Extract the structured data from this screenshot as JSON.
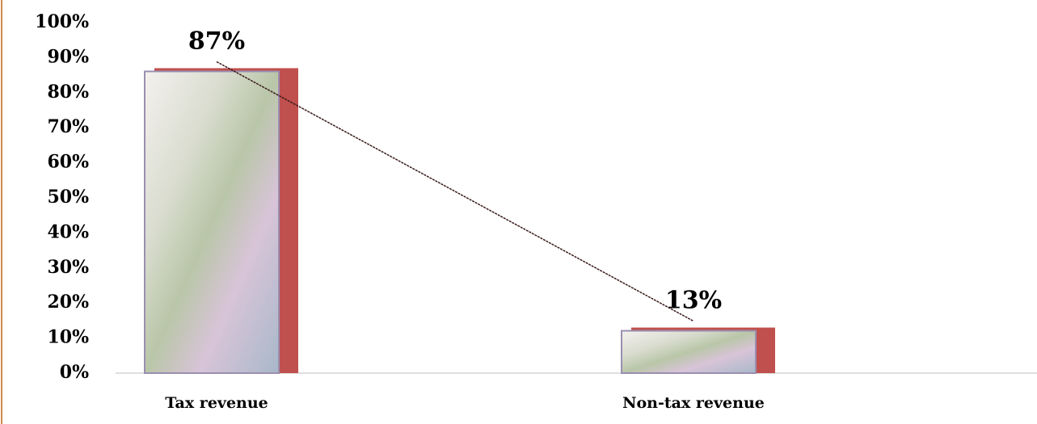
{
  "chart_data": {
    "type": "bar",
    "categories": [
      "Tax revenue",
      "Non-tax revenue"
    ],
    "values": [
      87,
      13
    ],
    "value_labels": [
      "87%",
      "13%"
    ],
    "color": "#c0504d",
    "ylim": [
      0,
      100
    ],
    "yticks": [
      {
        "value": 0,
        "label": "0%"
      },
      {
        "value": 10,
        "label": "10%"
      },
      {
        "value": 20,
        "label": "20%"
      },
      {
        "value": 30,
        "label": "30%"
      },
      {
        "value": 40,
        "label": "40%"
      },
      {
        "value": 50,
        "label": "50%"
      },
      {
        "value": 60,
        "label": "60%"
      },
      {
        "value": 70,
        "label": "70%"
      },
      {
        "value": 80,
        "label": "80%"
      },
      {
        "value": 90,
        "label": "90%"
      },
      {
        "value": 100,
        "label": "100%"
      }
    ],
    "grid": false
  }
}
